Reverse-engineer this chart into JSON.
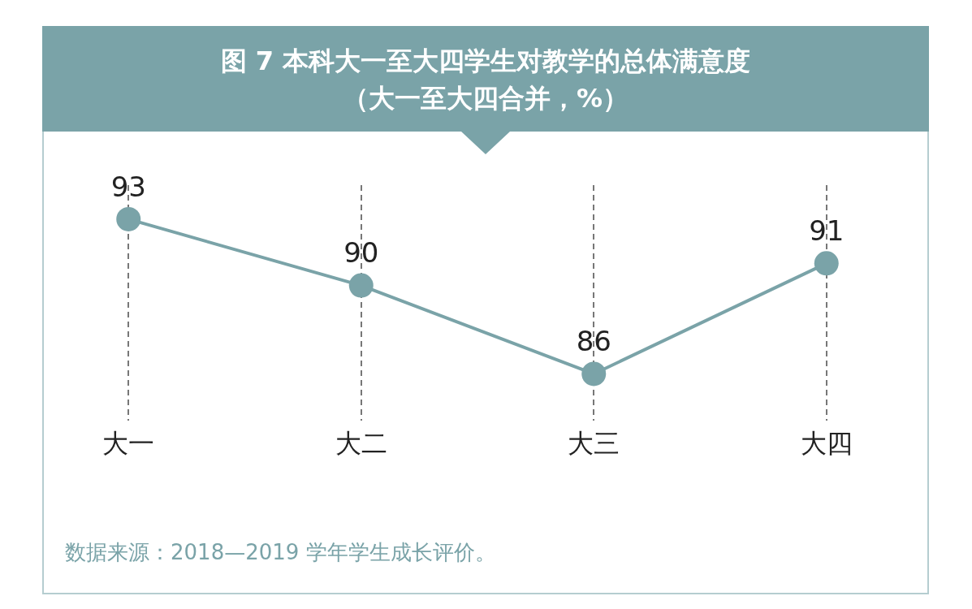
{
  "chart_data": {
    "type": "line",
    "title": "图 7 本科大一至大四学生对教学的总体满意度",
    "subtitle": "（大一至大四合并，%）",
    "categories": [
      "大一",
      "大二",
      "大三",
      "大四"
    ],
    "series": [
      {
        "color": "#7aa3a8",
        "values": [
          93,
          90,
          86,
          91
        ]
      }
    ],
    "data_labels": true,
    "grid": "x",
    "legend": false,
    "marker": "circle",
    "line_style": "solid",
    "annotations": [
      "数据来源：2018—2019 学年学生成长评价。"
    ]
  }
}
